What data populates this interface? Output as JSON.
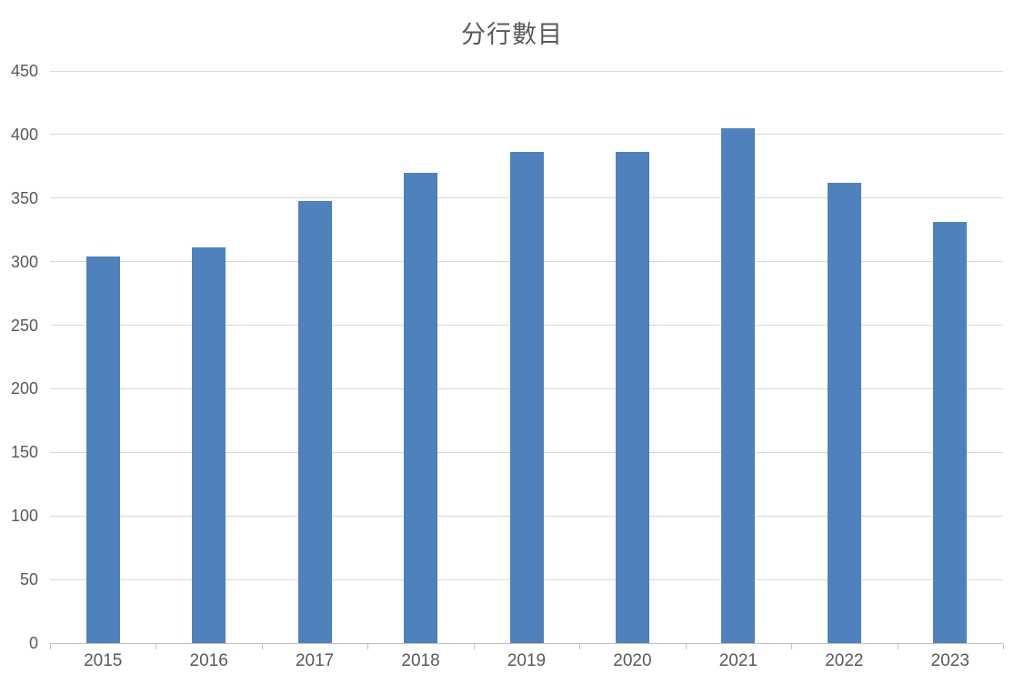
{
  "chart_data": {
    "type": "bar",
    "title": "分行數目",
    "categories": [
      "2015",
      "2016",
      "2017",
      "2018",
      "2019",
      "2020",
      "2021",
      "2022",
      "2023"
    ],
    "values": [
      304,
      311,
      348,
      370,
      386,
      386,
      405,
      362,
      331
    ],
    "ylim": [
      0,
      450
    ],
    "yticks": [
      0,
      50,
      100,
      150,
      200,
      250,
      300,
      350,
      400,
      450
    ],
    "xlabel": "",
    "ylabel": "",
    "legend": "none",
    "grid": "horizontal",
    "colors": {
      "bar": "#4F81BD",
      "gridline": "#D9D9D9",
      "axis_line": "#BFBFBF",
      "tick_label": "#595959",
      "title": "#595959",
      "background": "#FFFFFF"
    }
  }
}
